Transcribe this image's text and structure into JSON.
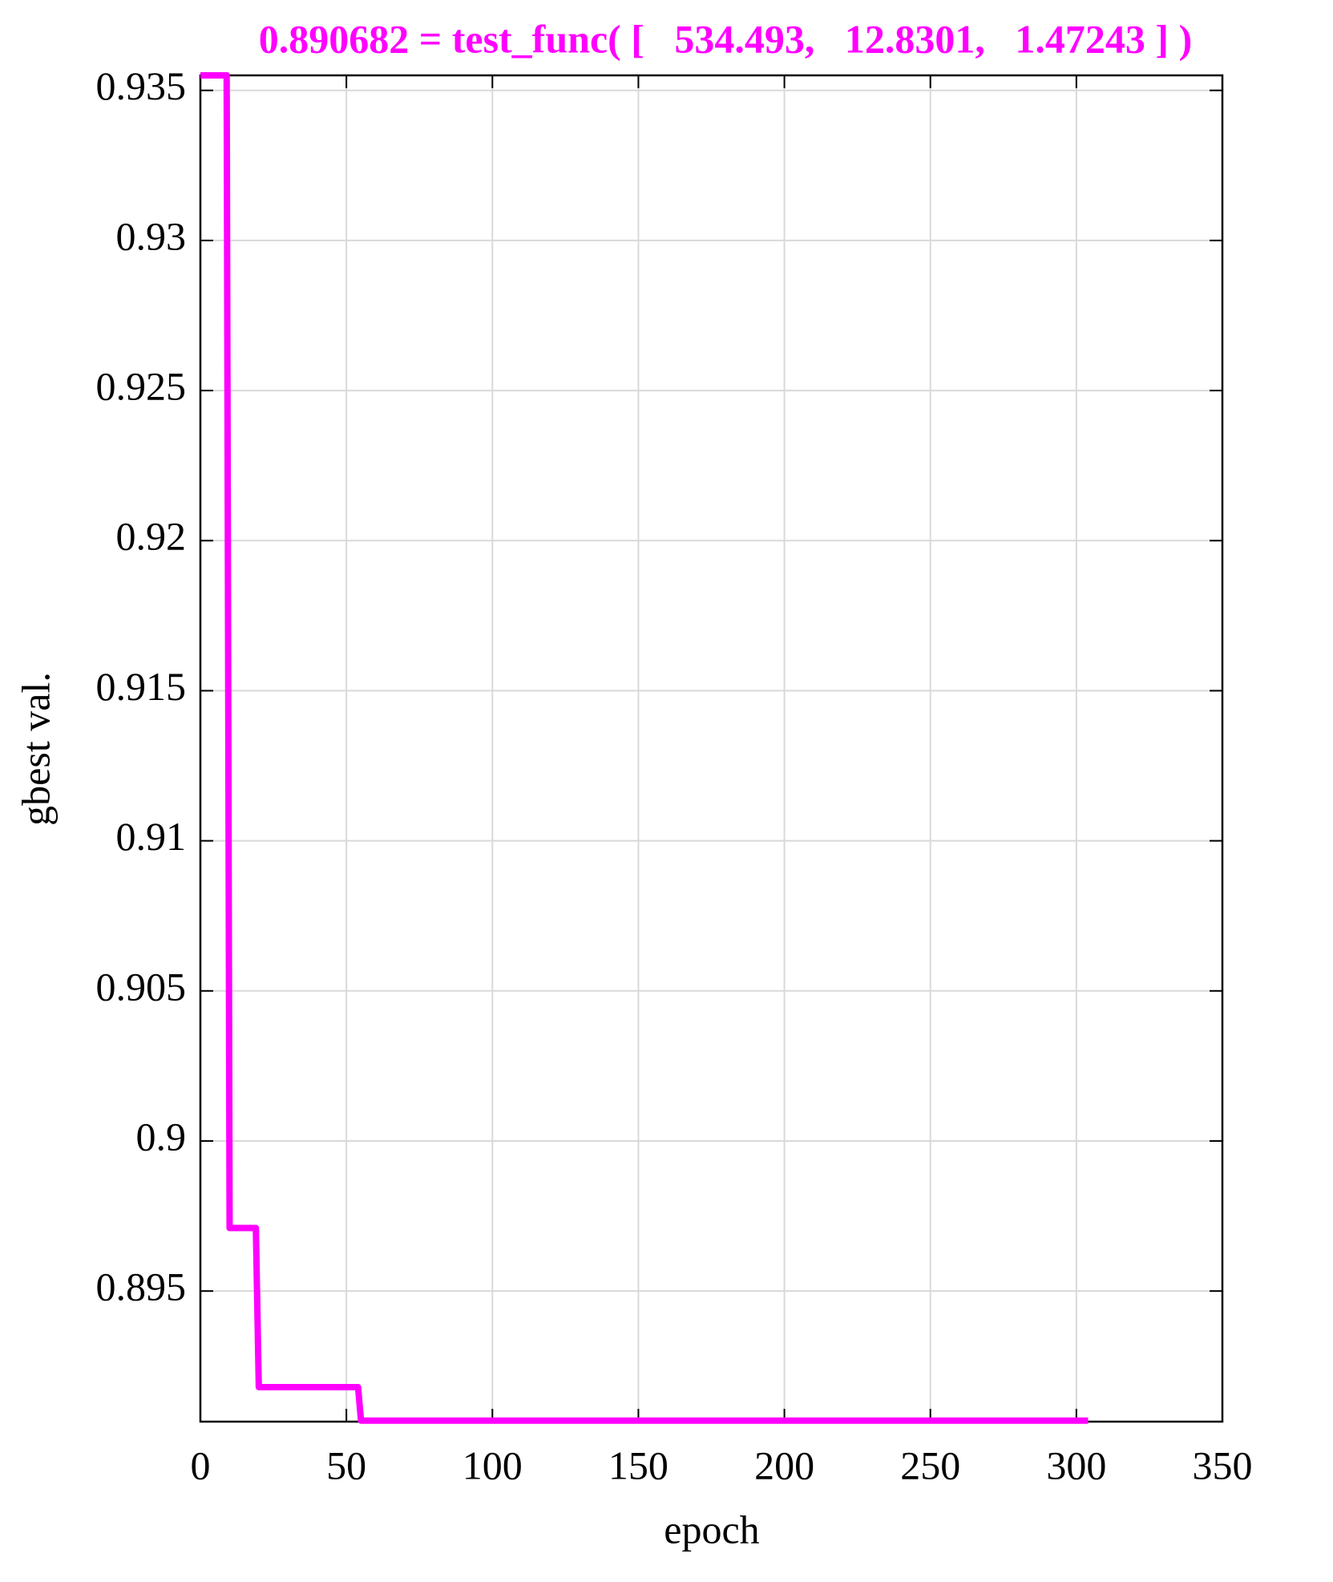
{
  "chart_data": {
    "type": "line",
    "title": "0.890682 = test_func( [   534.493,   12.8301,   1.47243 ] )",
    "x_label": "epoch",
    "y_label": "gbest val.",
    "series": [
      {
        "color": "#ff00ff",
        "x": [
          0,
          9,
          10,
          19,
          20,
          54,
          55,
          304
        ],
        "values": [
          0.9355,
          0.9355,
          0.8971,
          0.8971,
          0.8918,
          0.8918,
          0.890682,
          0.890682
        ]
      }
    ],
    "xlim": [
      0,
      350
    ],
    "xticks": [
      0,
      50,
      100,
      150,
      200,
      250,
      300,
      350
    ],
    "ylim": [
      0.89065,
      0.9355
    ],
    "yticks": [
      0.895,
      0.9,
      0.905,
      0.91,
      0.915,
      0.92,
      0.925,
      0.93,
      0.935
    ],
    "grid": true
  }
}
